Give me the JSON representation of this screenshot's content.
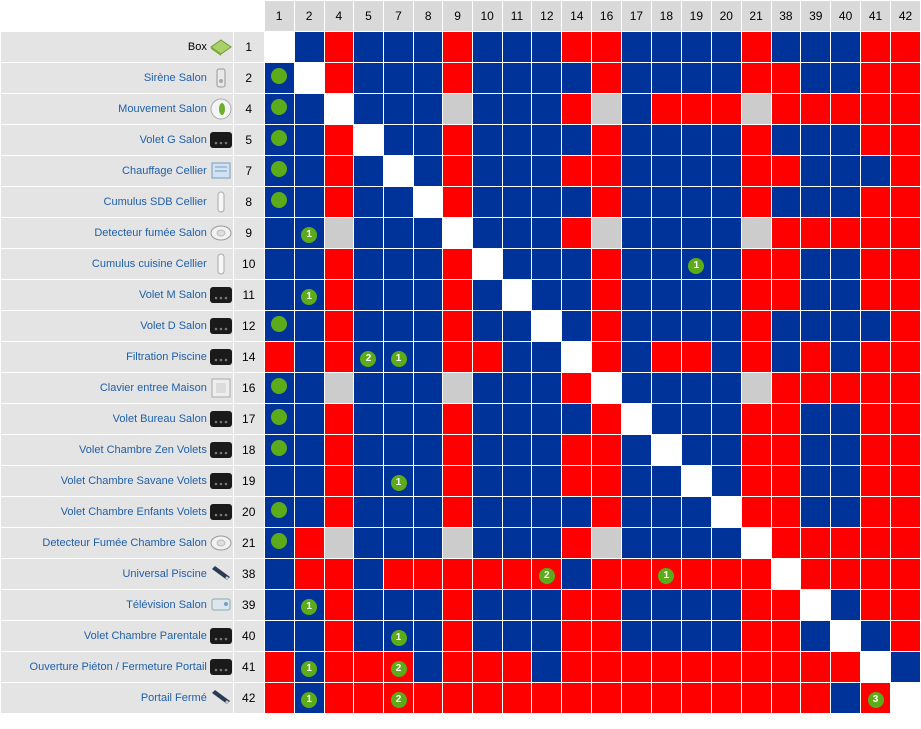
{
  "colors": {
    "blue": "#003399",
    "red": "#ff0000",
    "diag": "#ffffff",
    "gray": "#cccccc",
    "badge": "#5cac19",
    "link": "#1f5fa8"
  },
  "columns": [
    "1",
    "2",
    "4",
    "5",
    "7",
    "8",
    "9",
    "10",
    "11",
    "12",
    "14",
    "16",
    "17",
    "18",
    "19",
    "20",
    "21",
    "38",
    "39",
    "40",
    "41",
    "42"
  ],
  "rows": [
    {
      "name": "Box",
      "id": "1",
      "icon": "box-icon",
      "cells": [
        "W",
        "B",
        "R",
        "B",
        "B",
        "B",
        "R",
        "B",
        "B",
        "B",
        "R",
        "R",
        "B",
        "B",
        "B",
        "B",
        "R",
        "B",
        "B",
        "B",
        "R",
        "R"
      ],
      "badges": []
    },
    {
      "name": "Sirène Salon",
      "id": "2",
      "icon": "siren-icon",
      "cells": [
        "B",
        "W",
        "R",
        "B",
        "B",
        "B",
        "R",
        "B",
        "B",
        "B",
        "B",
        "R",
        "B",
        "B",
        "B",
        "B",
        "R",
        "R",
        "B",
        "B",
        "R",
        "R"
      ],
      "badges": [
        [
          0,
          ""
        ]
      ]
    },
    {
      "name": "Mouvement Salon",
      "id": "4",
      "icon": "motion-sensor-icon",
      "cells": [
        "B",
        "B",
        "W",
        "B",
        "B",
        "B",
        "G",
        "B",
        "B",
        "B",
        "R",
        "G",
        "B",
        "R",
        "R",
        "R",
        "G",
        "R",
        "R",
        "R",
        "R",
        "R"
      ],
      "badges": [
        [
          0,
          ""
        ]
      ]
    },
    {
      "name": "Volet G Salon",
      "id": "5",
      "icon": "module-icon",
      "cells": [
        "B",
        "B",
        "R",
        "W",
        "B",
        "B",
        "R",
        "B",
        "B",
        "B",
        "B",
        "R",
        "B",
        "B",
        "B",
        "B",
        "R",
        "B",
        "B",
        "B",
        "R",
        "R"
      ],
      "badges": [
        [
          0,
          ""
        ]
      ]
    },
    {
      "name": "Chauffage Cellier",
      "id": "7",
      "icon": "heater-icon",
      "cells": [
        "B",
        "B",
        "R",
        "B",
        "W",
        "B",
        "R",
        "B",
        "B",
        "B",
        "R",
        "R",
        "B",
        "B",
        "B",
        "B",
        "R",
        "R",
        "B",
        "B",
        "B",
        "R"
      ],
      "badges": [
        [
          0,
          ""
        ]
      ]
    },
    {
      "name": "Cumulus SDB Cellier",
      "id": "8",
      "icon": "plug-icon",
      "cells": [
        "B",
        "B",
        "R",
        "B",
        "B",
        "W",
        "R",
        "B",
        "B",
        "B",
        "B",
        "R",
        "B",
        "B",
        "B",
        "B",
        "R",
        "B",
        "B",
        "B",
        "R",
        "R"
      ],
      "badges": [
        [
          0,
          ""
        ]
      ]
    },
    {
      "name": "Detecteur fumée Salon",
      "id": "9",
      "icon": "smoke-detector-icon",
      "cells": [
        "B",
        "B",
        "G",
        "B",
        "B",
        "B",
        "W",
        "B",
        "B",
        "B",
        "R",
        "G",
        "B",
        "B",
        "B",
        "B",
        "G",
        "R",
        "R",
        "R",
        "R",
        "R"
      ],
      "badges": [
        [
          1,
          "1"
        ]
      ]
    },
    {
      "name": "Cumulus cuisine Cellier",
      "id": "10",
      "icon": "plug-icon",
      "cells": [
        "B",
        "B",
        "R",
        "B",
        "B",
        "B",
        "R",
        "W",
        "B",
        "B",
        "B",
        "R",
        "B",
        "B",
        "B",
        "B",
        "R",
        "R",
        "B",
        "B",
        "R",
        "R"
      ],
      "badges": [
        [
          14,
          "1"
        ]
      ]
    },
    {
      "name": "Volet M Salon",
      "id": "11",
      "icon": "module-icon",
      "cells": [
        "B",
        "B",
        "R",
        "B",
        "B",
        "B",
        "R",
        "B",
        "W",
        "B",
        "B",
        "R",
        "B",
        "B",
        "B",
        "B",
        "R",
        "R",
        "B",
        "B",
        "R",
        "R"
      ],
      "badges": [
        [
          1,
          "1"
        ]
      ]
    },
    {
      "name": "Volet D Salon",
      "id": "12",
      "icon": "module-icon",
      "cells": [
        "B",
        "B",
        "R",
        "B",
        "B",
        "B",
        "R",
        "B",
        "B",
        "W",
        "B",
        "R",
        "B",
        "B",
        "B",
        "B",
        "R",
        "B",
        "B",
        "B",
        "B",
        "R"
      ],
      "badges": [
        [
          0,
          ""
        ]
      ]
    },
    {
      "name": "Filtration Piscine",
      "id": "14",
      "icon": "module-icon",
      "cells": [
        "R",
        "B",
        "R",
        "B",
        "B",
        "B",
        "R",
        "R",
        "B",
        "B",
        "W",
        "R",
        "B",
        "R",
        "R",
        "B",
        "R",
        "B",
        "R",
        "B",
        "R",
        "R"
      ],
      "badges": [
        [
          3,
          "2"
        ],
        [
          4,
          "1"
        ]
      ]
    },
    {
      "name": "Clavier entree Maison",
      "id": "16",
      "icon": "keypad-icon",
      "cells": [
        "B",
        "B",
        "G",
        "B",
        "B",
        "B",
        "G",
        "B",
        "B",
        "B",
        "R",
        "W",
        "B",
        "B",
        "B",
        "B",
        "G",
        "R",
        "R",
        "R",
        "R",
        "R"
      ],
      "badges": [
        [
          0,
          ""
        ]
      ]
    },
    {
      "name": "Volet Bureau Salon",
      "id": "17",
      "icon": "module-icon",
      "cells": [
        "B",
        "B",
        "R",
        "B",
        "B",
        "B",
        "R",
        "B",
        "B",
        "B",
        "B",
        "R",
        "W",
        "B",
        "B",
        "B",
        "R",
        "R",
        "B",
        "B",
        "R",
        "R"
      ],
      "badges": [
        [
          0,
          ""
        ]
      ]
    },
    {
      "name": "Volet Chambre Zen Volets",
      "id": "18",
      "icon": "module-icon",
      "cells": [
        "B",
        "B",
        "R",
        "B",
        "B",
        "B",
        "R",
        "B",
        "B",
        "B",
        "R",
        "R",
        "B",
        "W",
        "B",
        "B",
        "R",
        "R",
        "B",
        "B",
        "R",
        "R"
      ],
      "badges": [
        [
          0,
          ""
        ]
      ]
    },
    {
      "name": "Volet Chambre Savane Volets",
      "id": "19",
      "icon": "module-icon",
      "cells": [
        "B",
        "B",
        "R",
        "B",
        "B",
        "B",
        "R",
        "B",
        "B",
        "B",
        "R",
        "R",
        "B",
        "B",
        "W",
        "B",
        "R",
        "R",
        "B",
        "B",
        "R",
        "R"
      ],
      "badges": [
        [
          4,
          "1"
        ]
      ]
    },
    {
      "name": "Volet Chambre Enfants Volets",
      "id": "20",
      "icon": "module-icon",
      "cells": [
        "B",
        "B",
        "R",
        "B",
        "B",
        "B",
        "R",
        "B",
        "B",
        "B",
        "B",
        "R",
        "B",
        "B",
        "B",
        "W",
        "R",
        "R",
        "B",
        "B",
        "R",
        "R"
      ],
      "badges": [
        [
          0,
          ""
        ]
      ]
    },
    {
      "name": "Detecteur Fumée Chambre Salon",
      "id": "21",
      "icon": "smoke-detector-icon",
      "cells": [
        "B",
        "R",
        "G",
        "B",
        "B",
        "B",
        "G",
        "B",
        "B",
        "B",
        "R",
        "G",
        "B",
        "B",
        "B",
        "B",
        "W",
        "R",
        "R",
        "R",
        "R",
        "R"
      ],
      "badges": [
        [
          0,
          ""
        ]
      ]
    },
    {
      "name": "Universal Piscine",
      "id": "38",
      "icon": "remote-icon",
      "cells": [
        "B",
        "R",
        "R",
        "B",
        "R",
        "R",
        "R",
        "R",
        "R",
        "R",
        "B",
        "R",
        "R",
        "R",
        "R",
        "R",
        "R",
        "W",
        "R",
        "R",
        "R",
        "R"
      ],
      "badges": [
        [
          9,
          "2"
        ],
        [
          13,
          "1"
        ]
      ]
    },
    {
      "name": "Télévision Salon",
      "id": "39",
      "icon": "tv-icon",
      "cells": [
        "B",
        "B",
        "R",
        "B",
        "B",
        "B",
        "R",
        "B",
        "B",
        "B",
        "R",
        "R",
        "B",
        "B",
        "B",
        "B",
        "R",
        "R",
        "W",
        "B",
        "R",
        "R"
      ],
      "badges": [
        [
          1,
          "1"
        ]
      ]
    },
    {
      "name": "Volet Chambre Parentale",
      "id": "40",
      "icon": "module-icon",
      "cells": [
        "B",
        "B",
        "R",
        "B",
        "B",
        "B",
        "R",
        "B",
        "B",
        "B",
        "R",
        "R",
        "B",
        "B",
        "B",
        "B",
        "R",
        "R",
        "B",
        "W",
        "B",
        "R"
      ],
      "badges": [
        [
          4,
          "1"
        ]
      ]
    },
    {
      "name": "Ouverture Piéton / Fermeture Portail",
      "id": "41",
      "icon": "module-icon",
      "cells": [
        "R",
        "B",
        "R",
        "R",
        "R",
        "B",
        "R",
        "R",
        "R",
        "B",
        "R",
        "R",
        "R",
        "R",
        "R",
        "R",
        "R",
        "R",
        "R",
        "R",
        "W",
        "B"
      ],
      "badges": [
        [
          1,
          "1"
        ],
        [
          4,
          "2"
        ]
      ]
    },
    {
      "name": "Portail Fermé",
      "id": "42",
      "icon": "remote-icon",
      "cells": [
        "R",
        "B",
        "R",
        "R",
        "R",
        "R",
        "R",
        "R",
        "R",
        "R",
        "R",
        "R",
        "R",
        "R",
        "R",
        "R",
        "R",
        "R",
        "R",
        "B",
        "R",
        "W"
      ],
      "badges": [
        [
          1,
          "1"
        ],
        [
          4,
          "2"
        ],
        [
          20,
          "3"
        ]
      ]
    }
  ]
}
